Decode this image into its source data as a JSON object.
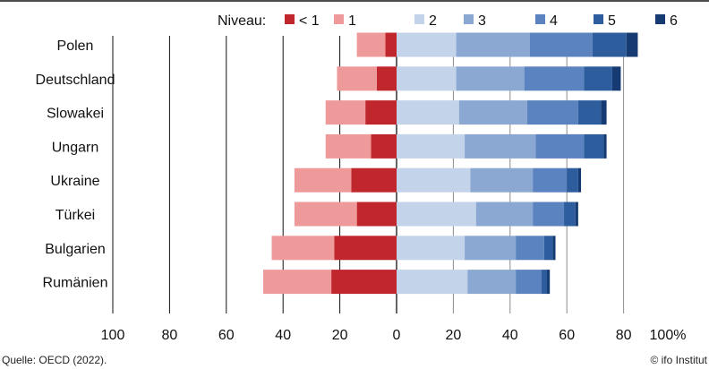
{
  "chart_data": {
    "type": "bar",
    "orientation": "horizontal",
    "stacked": "diverging",
    "legend_title": "Niveau:",
    "legend_position": "top",
    "categories": [
      "Polen",
      "Deutschland",
      "Slowakei",
      "Ungarn",
      "Ukraine",
      "Türkei",
      "Bulgarien",
      "Rumänien"
    ],
    "series": [
      {
        "name": "< 1",
        "color": "#c0272d",
        "side": "negative",
        "values": [
          4,
          7,
          11,
          9,
          16,
          14,
          22,
          23
        ]
      },
      {
        "name": "1",
        "color": "#ef9a9a",
        "side": "negative",
        "values": [
          10,
          14,
          14,
          16,
          20,
          22,
          22,
          24
        ]
      },
      {
        "name": "2",
        "color": "#c3d3e9",
        "side": "positive",
        "values": [
          21,
          21,
          22,
          24,
          26,
          28,
          24,
          25
        ]
      },
      {
        "name": "3",
        "color": "#8aa8d2",
        "side": "positive",
        "values": [
          26,
          24,
          24,
          25,
          22,
          20,
          18,
          17
        ]
      },
      {
        "name": "4",
        "color": "#5b83bf",
        "side": "positive",
        "values": [
          22,
          21,
          18,
          17,
          12,
          11,
          10,
          9
        ]
      },
      {
        "name": "5",
        "color": "#2e5d9e",
        "side": "positive",
        "values": [
          12,
          10,
          8,
          7,
          4,
          4,
          3,
          2
        ]
      },
      {
        "name": "6",
        "color": "#163b73",
        "side": "positive",
        "values": [
          4,
          3,
          2,
          1,
          1,
          1,
          1,
          1
        ]
      }
    ],
    "xlim": [
      -100,
      100
    ],
    "x_ticks": [
      {
        "value": -100,
        "label": "100"
      },
      {
        "value": -80,
        "label": "80"
      },
      {
        "value": -60,
        "label": "60"
      },
      {
        "value": -40,
        "label": "40"
      },
      {
        "value": -20,
        "label": "20"
      },
      {
        "value": 0,
        "label": "0"
      },
      {
        "value": 20,
        "label": "20"
      },
      {
        "value": 40,
        "label": "40"
      },
      {
        "value": 60,
        "label": "60"
      },
      {
        "value": 80,
        "label": "80"
      },
      {
        "value": 100,
        "label": "100%"
      }
    ],
    "grid": true,
    "grid_style": "vertical lines, black left of zero, gray right of zero"
  },
  "footer": {
    "source": "Quelle: OECD (2022).",
    "credit": "© ifo Institut"
  }
}
